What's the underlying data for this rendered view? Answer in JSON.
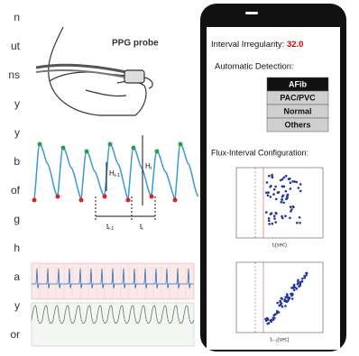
{
  "left_text": [
    "n",
    "ut",
    "ns",
    "y",
    "y",
    "b",
    "of",
    "g",
    "h",
    "a",
    "y",
    "or"
  ],
  "probe_label": "PPG probe",
  "waveform": {
    "h_prev": "H",
    "h_prev_sub": "i-1",
    "h_cur": "H",
    "h_cur_sub": "i",
    "t_prev": "t",
    "t_prev_sub": "i-1",
    "t_cur": "t",
    "t_cur_sub": "i"
  },
  "phone": {
    "irregularity_label": "Interval Irregularity:",
    "irregularity_value": "32.0",
    "detection_label": "Automatic Detection:",
    "options": [
      "AFib",
      "PAC/PVC",
      "Normal",
      "Others"
    ],
    "config_label": "Flux-Interval Configuration:",
    "plot1_xlabel": "tᵢ(sec)",
    "plot2_xlabel": "tᵢ₋₁(sec)"
  }
}
